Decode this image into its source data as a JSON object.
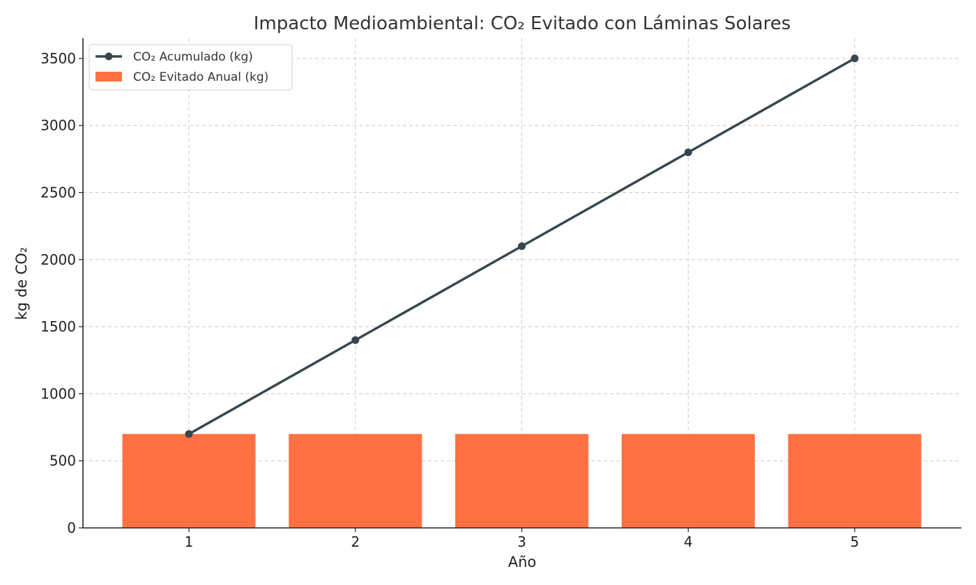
{
  "colors": {
    "line": "#37474f",
    "bar": "#ff7043",
    "grid": "#c8c8c8",
    "axis": "#222222"
  },
  "chart_data": {
    "type": "bar+line",
    "title": "Impacto Medioambiental: CO₂ Evitado con Láminas Solares",
    "xlabel": "Año",
    "ylabel": "kg de CO₂",
    "categories": [
      "1",
      "2",
      "3",
      "4",
      "5"
    ],
    "ylim": [
      0,
      3650
    ],
    "yticks": [
      0,
      500,
      1000,
      1500,
      2000,
      2500,
      3000,
      3500
    ],
    "yticks_text": [
      "0",
      "500",
      "1000",
      "1500",
      "2000",
      "2500",
      "3000",
      "3500"
    ],
    "grid": true,
    "legend_position": "top-left",
    "series": [
      {
        "name": "CO₂ Acumulado (kg)",
        "type": "line",
        "marker": "circle",
        "values": [
          700,
          1400,
          2100,
          2800,
          3500
        ]
      },
      {
        "name": "CO₂ Evitado Anual (kg)",
        "type": "bar",
        "values": [
          700,
          700,
          700,
          700,
          700
        ]
      }
    ]
  }
}
